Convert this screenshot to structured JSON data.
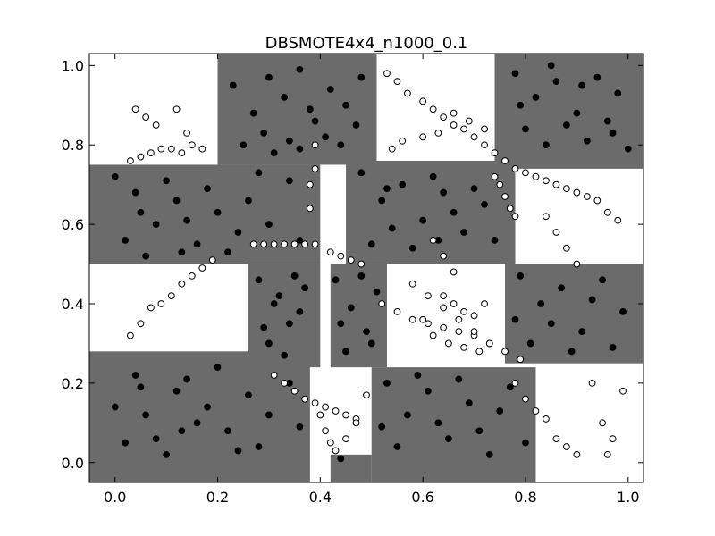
{
  "chart_data": {
    "type": "scatter",
    "title": "DBSMOTE4x4_n1000_0.1",
    "xlabel": "",
    "ylabel": "",
    "xlim": [
      -0.05,
      1.03
    ],
    "ylim": [
      -0.05,
      1.03
    ],
    "x_ticks": [
      "0.0",
      "0.2",
      "0.4",
      "0.6",
      "0.8",
      "1.0"
    ],
    "y_ticks": [
      "0.0",
      "0.2",
      "0.4",
      "0.6",
      "0.8",
      "1.0"
    ],
    "grid": false,
    "legend": "none",
    "colors": {
      "decision_region": "#6b6b6b",
      "majority_marker": "#000000",
      "minority_marker_fill": "#ffffff",
      "minority_marker_edge": "#000000"
    },
    "decision_region_boxes": [
      {
        "x": [
          0.2,
          0.51
        ],
        "y": [
          0.75,
          1.03
        ]
      },
      {
        "x": [
          0.74,
          1.03
        ],
        "y": [
          0.74,
          1.03
        ]
      },
      {
        "x": [
          -0.05,
          0.4
        ],
        "y": [
          0.5,
          0.75
        ]
      },
      {
        "x": [
          0.45,
          0.78
        ],
        "y": [
          0.5,
          0.76
        ]
      },
      {
        "x": [
          0.26,
          0.4
        ],
        "y": [
          0.24,
          0.5
        ]
      },
      {
        "x": [
          0.42,
          0.53
        ],
        "y": [
          0.24,
          0.5
        ]
      },
      {
        "x": [
          0.76,
          1.03
        ],
        "y": [
          0.25,
          0.5
        ]
      },
      {
        "x": [
          -0.05,
          0.38
        ],
        "y": [
          -0.05,
          0.28
        ]
      },
      {
        "x": [
          0.5,
          0.82
        ],
        "y": [
          -0.05,
          0.24
        ]
      },
      {
        "x": [
          0.42,
          0.5
        ],
        "y": [
          -0.05,
          0.02
        ]
      }
    ],
    "series": [
      {
        "marker": "filled",
        "points": [
          [
            0.23,
            0.95
          ],
          [
            0.27,
            0.88
          ],
          [
            0.3,
            0.97
          ],
          [
            0.33,
            0.92
          ],
          [
            0.36,
            0.99
          ],
          [
            0.39,
            0.86
          ],
          [
            0.42,
            0.94
          ],
          [
            0.45,
            0.9
          ],
          [
            0.48,
            0.97
          ],
          [
            0.25,
            0.8
          ],
          [
            0.29,
            0.83
          ],
          [
            0.34,
            0.81
          ],
          [
            0.38,
            0.89
          ],
          [
            0.41,
            0.82
          ],
          [
            0.44,
            0.8
          ],
          [
            0.47,
            0.85
          ],
          [
            0.31,
            0.78
          ],
          [
            0.36,
            0.79
          ],
          [
            0.78,
            0.98
          ],
          [
            0.82,
            0.92
          ],
          [
            0.86,
            0.96
          ],
          [
            0.9,
            0.88
          ],
          [
            0.94,
            0.97
          ],
          [
            0.98,
            0.93
          ],
          [
            0.8,
            0.84
          ],
          [
            0.84,
            0.8
          ],
          [
            0.88,
            0.85
          ],
          [
            0.92,
            0.81
          ],
          [
            0.96,
            0.86
          ],
          [
            1.0,
            0.79
          ],
          [
            0.79,
            0.9
          ],
          [
            0.85,
            1.0
          ],
          [
            0.91,
            0.95
          ],
          [
            0.97,
            0.83
          ],
          [
            0.0,
            0.72
          ],
          [
            0.04,
            0.68
          ],
          [
            0.08,
            0.6
          ],
          [
            0.12,
            0.66
          ],
          [
            0.16,
            0.55
          ],
          [
            0.2,
            0.63
          ],
          [
            0.24,
            0.58
          ],
          [
            0.02,
            0.56
          ],
          [
            0.06,
            0.52
          ],
          [
            0.1,
            0.71
          ],
          [
            0.14,
            0.61
          ],
          [
            0.18,
            0.69
          ],
          [
            0.22,
            0.53
          ],
          [
            0.26,
            0.66
          ],
          [
            0.3,
            0.6
          ],
          [
            0.34,
            0.71
          ],
          [
            0.36,
            0.56
          ],
          [
            0.05,
            0.63
          ],
          [
            0.13,
            0.53
          ],
          [
            0.28,
            0.73
          ],
          [
            0.48,
            0.73
          ],
          [
            0.52,
            0.66
          ],
          [
            0.56,
            0.7
          ],
          [
            0.6,
            0.61
          ],
          [
            0.64,
            0.68
          ],
          [
            0.68,
            0.58
          ],
          [
            0.72,
            0.65
          ],
          [
            0.5,
            0.55
          ],
          [
            0.54,
            0.59
          ],
          [
            0.58,
            0.54
          ],
          [
            0.62,
            0.72
          ],
          [
            0.66,
            0.63
          ],
          [
            0.7,
            0.69
          ],
          [
            0.74,
            0.56
          ],
          [
            0.53,
            0.69
          ],
          [
            0.63,
            0.56
          ],
          [
            0.28,
            0.46
          ],
          [
            0.31,
            0.4
          ],
          [
            0.34,
            0.35
          ],
          [
            0.37,
            0.44
          ],
          [
            0.3,
            0.3
          ],
          [
            0.33,
            0.27
          ],
          [
            0.36,
            0.38
          ],
          [
            0.29,
            0.34
          ],
          [
            0.35,
            0.47
          ],
          [
            0.32,
            0.42
          ],
          [
            0.43,
            0.46
          ],
          [
            0.46,
            0.39
          ],
          [
            0.49,
            0.33
          ],
          [
            0.45,
            0.28
          ],
          [
            0.51,
            0.43
          ],
          [
            0.44,
            0.35
          ],
          [
            0.48,
            0.47
          ],
          [
            0.5,
            0.3
          ],
          [
            0.79,
            0.47
          ],
          [
            0.83,
            0.4
          ],
          [
            0.87,
            0.44
          ],
          [
            0.91,
            0.33
          ],
          [
            0.95,
            0.46
          ],
          [
            0.99,
            0.38
          ],
          [
            0.81,
            0.3
          ],
          [
            0.85,
            0.35
          ],
          [
            0.89,
            0.28
          ],
          [
            0.93,
            0.41
          ],
          [
            0.97,
            0.29
          ],
          [
            0.78,
            0.36
          ],
          [
            0.0,
            0.14
          ],
          [
            0.04,
            0.22
          ],
          [
            0.08,
            0.06
          ],
          [
            0.12,
            0.18
          ],
          [
            0.16,
            0.1
          ],
          [
            0.2,
            0.24
          ],
          [
            0.24,
            0.03
          ],
          [
            0.02,
            0.05
          ],
          [
            0.06,
            0.12
          ],
          [
            0.1,
            0.02
          ],
          [
            0.14,
            0.21
          ],
          [
            0.18,
            0.14
          ],
          [
            0.22,
            0.08
          ],
          [
            0.26,
            0.17
          ],
          [
            0.3,
            0.12
          ],
          [
            0.34,
            0.2
          ],
          [
            0.05,
            0.19
          ],
          [
            0.13,
            0.08
          ],
          [
            0.28,
            0.04
          ],
          [
            0.36,
            0.09
          ],
          [
            0.53,
            0.2
          ],
          [
            0.57,
            0.12
          ],
          [
            0.61,
            0.18
          ],
          [
            0.65,
            0.06
          ],
          [
            0.69,
            0.15
          ],
          [
            0.73,
            0.02
          ],
          [
            0.77,
            0.19
          ],
          [
            0.55,
            0.04
          ],
          [
            0.59,
            0.22
          ],
          [
            0.63,
            0.1
          ],
          [
            0.67,
            0.21
          ],
          [
            0.71,
            0.08
          ],
          [
            0.75,
            0.13
          ],
          [
            0.8,
            0.05
          ],
          [
            0.52,
            0.09
          ],
          [
            0.44,
            0.01
          ]
        ]
      },
      {
        "marker": "hollow",
        "points": [
          [
            0.04,
            0.89
          ],
          [
            0.06,
            0.87
          ],
          [
            0.08,
            0.85
          ],
          [
            0.12,
            0.89
          ],
          [
            0.14,
            0.83
          ],
          [
            0.15,
            0.8
          ],
          [
            0.17,
            0.79
          ],
          [
            0.03,
            0.76
          ],
          [
            0.05,
            0.77
          ],
          [
            0.07,
            0.78
          ],
          [
            0.09,
            0.79
          ],
          [
            0.11,
            0.79
          ],
          [
            0.13,
            0.78
          ],
          [
            0.27,
            0.55
          ],
          [
            0.29,
            0.55
          ],
          [
            0.31,
            0.55
          ],
          [
            0.33,
            0.55
          ],
          [
            0.35,
            0.55
          ],
          [
            0.37,
            0.55
          ],
          [
            0.39,
            0.55
          ],
          [
            0.39,
            0.74
          ],
          [
            0.39,
            0.8
          ],
          [
            0.38,
            0.7
          ],
          [
            0.38,
            0.64
          ],
          [
            0.42,
            0.53
          ],
          [
            0.44,
            0.52
          ],
          [
            0.46,
            0.51
          ],
          [
            0.48,
            0.5
          ],
          [
            0.54,
            0.79
          ],
          [
            0.56,
            0.81
          ],
          [
            0.6,
            0.82
          ],
          [
            0.63,
            0.83
          ],
          [
            0.66,
            0.85
          ],
          [
            0.69,
            0.86
          ],
          [
            0.72,
            0.84
          ],
          [
            0.53,
            0.98
          ],
          [
            0.55,
            0.96
          ],
          [
            0.57,
            0.93
          ],
          [
            0.6,
            0.91
          ],
          [
            0.62,
            0.89
          ],
          [
            0.64,
            0.87
          ],
          [
            0.66,
            0.88
          ],
          [
            0.68,
            0.84
          ],
          [
            0.7,
            0.82
          ],
          [
            0.72,
            0.8
          ],
          [
            0.74,
            0.78
          ],
          [
            0.76,
            0.76
          ],
          [
            0.78,
            0.74
          ],
          [
            0.8,
            0.73
          ],
          [
            0.82,
            0.72
          ],
          [
            0.84,
            0.71
          ],
          [
            0.86,
            0.7
          ],
          [
            0.88,
            0.69
          ],
          [
            0.9,
            0.68
          ],
          [
            0.92,
            0.67
          ],
          [
            0.94,
            0.66
          ],
          [
            0.96,
            0.63
          ],
          [
            0.98,
            0.61
          ],
          [
            0.74,
            0.72
          ],
          [
            0.75,
            0.7
          ],
          [
            0.76,
            0.67
          ],
          [
            0.77,
            0.64
          ],
          [
            0.78,
            0.62
          ],
          [
            0.52,
            0.4
          ],
          [
            0.55,
            0.38
          ],
          [
            0.58,
            0.36
          ],
          [
            0.61,
            0.35
          ],
          [
            0.64,
            0.34
          ],
          [
            0.67,
            0.33
          ],
          [
            0.7,
            0.32
          ],
          [
            0.73,
            0.3
          ],
          [
            0.76,
            0.28
          ],
          [
            0.79,
            0.26
          ],
          [
            0.58,
            0.45
          ],
          [
            0.61,
            0.42
          ],
          [
            0.64,
            0.39
          ],
          [
            0.67,
            0.36
          ],
          [
            0.7,
            0.33
          ],
          [
            0.73,
            0.3
          ],
          [
            0.6,
            0.36
          ],
          [
            0.62,
            0.32
          ],
          [
            0.65,
            0.3
          ],
          [
            0.68,
            0.29
          ],
          [
            0.71,
            0.28
          ],
          [
            0.64,
            0.42
          ],
          [
            0.66,
            0.4
          ],
          [
            0.68,
            0.38
          ],
          [
            0.7,
            0.37
          ],
          [
            0.72,
            0.4
          ],
          [
            0.78,
            0.2
          ],
          [
            0.8,
            0.16
          ],
          [
            0.82,
            0.13
          ],
          [
            0.84,
            0.11
          ],
          [
            0.86,
            0.06
          ],
          [
            0.88,
            0.04
          ],
          [
            0.9,
            0.02
          ],
          [
            0.93,
            0.2
          ],
          [
            0.95,
            0.1
          ],
          [
            0.97,
            0.06
          ],
          [
            0.99,
            0.18
          ],
          [
            0.96,
            0.02
          ],
          [
            0.62,
            0.56
          ],
          [
            0.64,
            0.52
          ],
          [
            0.66,
            0.48
          ],
          [
            0.84,
            0.62
          ],
          [
            0.86,
            0.58
          ],
          [
            0.88,
            0.54
          ],
          [
            0.9,
            0.5
          ],
          [
            0.07,
            0.39
          ],
          [
            0.09,
            0.4
          ],
          [
            0.11,
            0.42
          ],
          [
            0.13,
            0.45
          ],
          [
            0.15,
            0.47
          ],
          [
            0.17,
            0.49
          ],
          [
            0.19,
            0.51
          ],
          [
            0.03,
            0.32
          ],
          [
            0.05,
            0.35
          ],
          [
            0.31,
            0.22
          ],
          [
            0.33,
            0.2
          ],
          [
            0.35,
            0.18
          ],
          [
            0.37,
            0.16
          ],
          [
            0.39,
            0.15
          ],
          [
            0.41,
            0.14
          ],
          [
            0.43,
            0.13
          ],
          [
            0.45,
            0.12
          ],
          [
            0.47,
            0.11
          ],
          [
            0.4,
            0.12
          ],
          [
            0.41,
            0.08
          ],
          [
            0.42,
            0.05
          ],
          [
            0.43,
            0.03
          ],
          [
            0.45,
            0.06
          ],
          [
            0.47,
            0.1
          ],
          [
            0.49,
            0.17
          ]
        ]
      }
    ]
  }
}
